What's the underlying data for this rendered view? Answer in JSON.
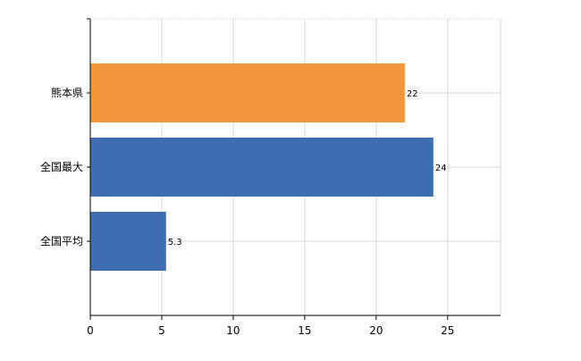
{
  "chart_data": {
    "type": "bar",
    "orientation": "horizontal",
    "categories": [
      "熊本県",
      "全国最大",
      "全国平均"
    ],
    "values": [
      22,
      24,
      5.3
    ],
    "value_labels": [
      "22",
      "24",
      "5.3"
    ],
    "colors": [
      "#F0963A",
      "#3F6EB0",
      "#3F6EB0"
    ],
    "xlim": [
      0,
      28.7
    ],
    "x_ticks": [
      0,
      5,
      10,
      15,
      20,
      25
    ],
    "x_tick_labels": [
      "0",
      "5",
      "10",
      "15",
      "20",
      "25"
    ],
    "grid": true,
    "legend": "none"
  }
}
